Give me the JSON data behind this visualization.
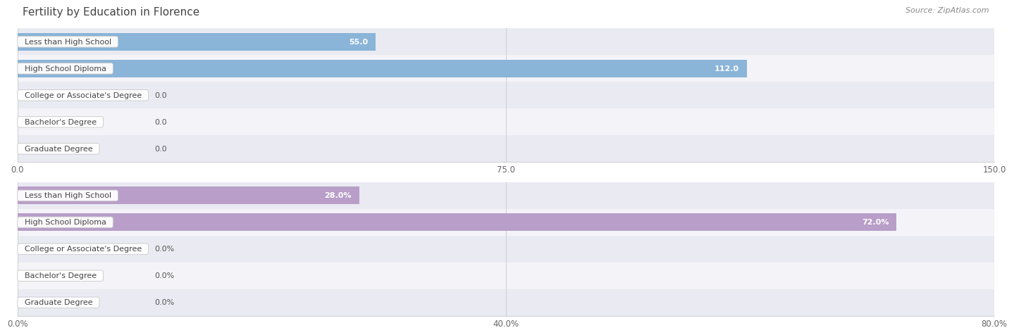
{
  "title": "Fertility by Education in Florence",
  "source": "Source: ZipAtlas.com",
  "chart1": {
    "categories": [
      "Less than High School",
      "High School Diploma",
      "College or Associate's Degree",
      "Bachelor's Degree",
      "Graduate Degree"
    ],
    "values": [
      55.0,
      112.0,
      0.0,
      0.0,
      0.0
    ],
    "xlim": [
      0,
      150.0
    ],
    "xticks": [
      0.0,
      75.0,
      150.0
    ],
    "xtick_labels": [
      "0.0",
      "75.0",
      "150.0"
    ],
    "bar_color": "#8ab4d8",
    "bg_colors": [
      "#eaeaf2",
      "#f4f4f8"
    ],
    "value_suffix": ""
  },
  "chart2": {
    "categories": [
      "Less than High School",
      "High School Diploma",
      "College or Associate's Degree",
      "Bachelor's Degree",
      "Graduate Degree"
    ],
    "values": [
      28.0,
      72.0,
      0.0,
      0.0,
      0.0
    ],
    "xlim": [
      0,
      80.0
    ],
    "xticks": [
      0.0,
      40.0,
      80.0
    ],
    "xtick_labels": [
      "0.0%",
      "40.0%",
      "80.0%"
    ],
    "bar_color": "#b89ec8",
    "bg_colors": [
      "#eaeaf2",
      "#f4f4f8"
    ],
    "value_suffix": "%"
  },
  "title_fontsize": 11,
  "title_color": "#444444",
  "source_color": "#888888",
  "label_text_color": "#444444",
  "label_fontsize": 8,
  "value_fontsize": 8,
  "grid_color": "#d0d0d8",
  "spine_color": "#d0d0d8"
}
